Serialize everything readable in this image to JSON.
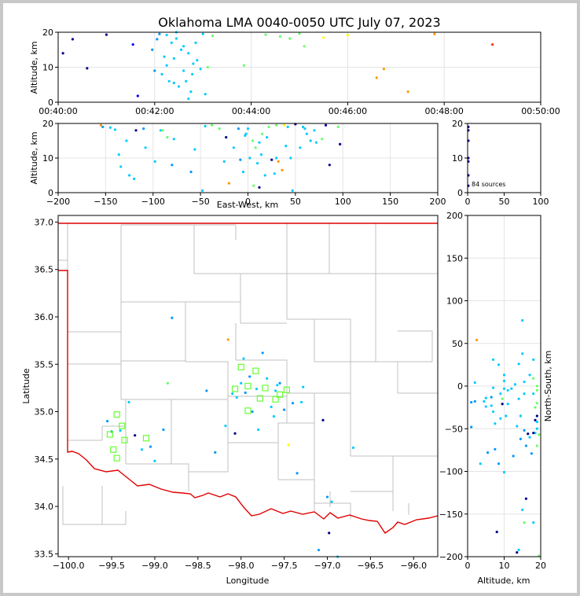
{
  "title": "Oklahoma LMA 0040-0050 UTC July 07, 2023",
  "colors": {
    "background": "#c8c8c8",
    "panel": "#ffffff",
    "state_border": "#e00000",
    "county_lines": "#c0c0c0",
    "station_marker": "#66ff33",
    "colormap": [
      "#00008b",
      "#0000ff",
      "#0099ff",
      "#00ccff",
      "#66ff66",
      "#ffff00",
      "#ff9900",
      "#ff3300"
    ]
  },
  "chart_data": [
    {
      "name": "time-altitude",
      "type": "scatter",
      "xlabel": "",
      "ylabel": "Altitude, km",
      "xticks": [
        "00:40:00",
        "00:42:00",
        "00:44:00",
        "00:46:00",
        "00:48:00",
        "00:50:00"
      ],
      "xlim_minutes": [
        40,
        50
      ],
      "yticks": [
        "0",
        "10",
        "20"
      ],
      "ylim": [
        0,
        20
      ],
      "grid": true,
      "points": [
        [
          40.1,
          14,
          0.02
        ],
        [
          40.3,
          18,
          0.05
        ],
        [
          40.6,
          9.7,
          0.05
        ],
        [
          41.0,
          19.3,
          0.05
        ],
        [
          41.55,
          16.5,
          0.1
        ],
        [
          41.65,
          1.8,
          0.2
        ],
        [
          41.95,
          15,
          0.3
        ],
        [
          42.0,
          9,
          0.35
        ],
        [
          42.05,
          18,
          0.35
        ],
        [
          42.1,
          19.5,
          0.35
        ],
        [
          42.15,
          8,
          0.38
        ],
        [
          42.2,
          13,
          0.38
        ],
        [
          42.25,
          19.2,
          0.4
        ],
        [
          42.3,
          6,
          0.4
        ],
        [
          42.35,
          17,
          0.4
        ],
        [
          42.4,
          5.5,
          0.4
        ],
        [
          42.4,
          12.5,
          0.4
        ],
        [
          42.45,
          18.2,
          0.42
        ],
        [
          42.5,
          4.5,
          0.42
        ],
        [
          42.55,
          15,
          0.42
        ],
        [
          42.6,
          9,
          0.42
        ],
        [
          42.6,
          16,
          0.45
        ],
        [
          42.65,
          6,
          0.45
        ],
        [
          42.7,
          14,
          0.45
        ],
        [
          42.75,
          3,
          0.45
        ],
        [
          42.78,
          8,
          0.45
        ],
        [
          42.8,
          11,
          0.45
        ],
        [
          42.85,
          17,
          0.45
        ],
        [
          42.88,
          12,
          0.48
        ],
        [
          42.95,
          9.5,
          0.48
        ],
        [
          43.0,
          19.5,
          0.48
        ],
        [
          43.05,
          2.3,
          0.48
        ],
        [
          43.1,
          10,
          0.5
        ],
        [
          43.2,
          19,
          0.5
        ],
        [
          42.25,
          10.5,
          0.4
        ],
        [
          42.45,
          20,
          0.4
        ],
        [
          42.7,
          1,
          0.45
        ],
        [
          43.85,
          10.5,
          0.55
        ],
        [
          44.3,
          19.3,
          0.6
        ],
        [
          44.6,
          18.8,
          0.62
        ],
        [
          44.8,
          18.2,
          0.63
        ],
        [
          45.0,
          19.6,
          0.62
        ],
        [
          45.1,
          16,
          0.62
        ],
        [
          45.5,
          18.5,
          0.68
        ],
        [
          46.0,
          19.2,
          0.7
        ],
        [
          46.6,
          7,
          0.8
        ],
        [
          46.75,
          9.5,
          0.82
        ],
        [
          47.25,
          3,
          0.85
        ],
        [
          47.8,
          19.5,
          0.9
        ],
        [
          49.0,
          16.5,
          0.95
        ]
      ]
    },
    {
      "name": "east-west-altitude",
      "type": "scatter",
      "xlabel": "East-West, km",
      "ylabel": "Altitude, km",
      "xticks": [
        "−200",
        "−150",
        "−100",
        "−50",
        "0",
        "50",
        "100",
        "150",
        "200"
      ],
      "xlim": [
        -200,
        200
      ],
      "yticks": [
        "0",
        "10",
        "20"
      ],
      "ylim": [
        0,
        20
      ],
      "grid": true,
      "points": [
        [
          -155,
          19.5,
          0.9
        ],
        [
          -153,
          19,
          0.3
        ],
        [
          -145,
          18.8,
          0.4
        ],
        [
          -140,
          18.2,
          0.45
        ],
        [
          -136,
          11,
          0.4
        ],
        [
          -134,
          7.5,
          0.45
        ],
        [
          -128,
          15,
          0.4
        ],
        [
          -125,
          5,
          0.4
        ],
        [
          -120,
          4,
          0.4
        ],
        [
          -118,
          18,
          0.02
        ],
        [
          -110,
          18.5,
          0.35
        ],
        [
          -108,
          13,
          0.4
        ],
        [
          -98,
          9,
          0.4
        ],
        [
          -92,
          18,
          0.45
        ],
        [
          -90,
          18,
          0.55
        ],
        [
          -80,
          8,
          0.3
        ],
        [
          -78,
          15.5,
          0.4
        ],
        [
          -60,
          6,
          0.3
        ],
        [
          -56,
          12.5,
          0.4
        ],
        [
          -48,
          0.6,
          0.4
        ],
        [
          -38,
          19.5,
          0.5
        ],
        [
          -30,
          18.5,
          0.62
        ],
        [
          -25,
          9,
          0.45
        ],
        [
          -23,
          16,
          0.02
        ],
        [
          -20,
          2.7,
          0.9
        ],
        [
          -15,
          13,
          0.45
        ],
        [
          -10,
          18.5,
          0.35
        ],
        [
          -8,
          9.5,
          0.35
        ],
        [
          -5,
          6,
          0.4
        ],
        [
          -2,
          17,
          0.4
        ],
        [
          0,
          18.5,
          0.45
        ],
        [
          2,
          10,
          0.45
        ],
        [
          5,
          15,
          0.5
        ],
        [
          6,
          2,
          0.5
        ],
        [
          8,
          13,
          0.5
        ],
        [
          10,
          8.5,
          0.45
        ],
        [
          12,
          14.5,
          0.45
        ],
        [
          14,
          11,
          0.45
        ],
        [
          15,
          17,
          0.5
        ],
        [
          18,
          5,
          0.45
        ],
        [
          22,
          19,
          0.5
        ],
        [
          25,
          9.5,
          0.02
        ],
        [
          28,
          5.5,
          0.4
        ],
        [
          30,
          10,
          0.42
        ],
        [
          32,
          9,
          0.8
        ],
        [
          36,
          6.5,
          0.85
        ],
        [
          38,
          19.5,
          0.7
        ],
        [
          40,
          13.5,
          0.42
        ],
        [
          42,
          19,
          0.4
        ],
        [
          45,
          10,
          0.45
        ],
        [
          47,
          0.6,
          0.45
        ],
        [
          50,
          19.8,
          0.05
        ],
        [
          55,
          13,
          0.45
        ],
        [
          60,
          18.5,
          0.42
        ],
        [
          62,
          17,
          0.45
        ],
        [
          66,
          15,
          0.48
        ],
        [
          70,
          18,
          0.48
        ],
        [
          72,
          14.5,
          0.42
        ],
        [
          78,
          15.5,
          0.6
        ],
        [
          82,
          19.5,
          0.02
        ],
        [
          86,
          8,
          0.02
        ],
        [
          95,
          19,
          0.55
        ],
        [
          97,
          14,
          0.02
        ],
        [
          -85,
          16,
          0.5
        ],
        [
          20,
          16,
          0.45
        ],
        [
          -45,
          19.2,
          0.42
        ],
        [
          58,
          19,
          0.42
        ],
        [
          30,
          19.5,
          0.55
        ],
        [
          -3,
          16.5,
          0.45
        ],
        [
          12,
          1.5,
          0.02
        ]
      ]
    },
    {
      "name": "altitude-histogram",
      "type": "scatter",
      "xticks": [
        "0",
        "50",
        "100"
      ],
      "xlim": [
        0,
        100
      ],
      "yticks": [
        "0",
        "10",
        "20"
      ],
      "ylim": [
        0,
        20
      ],
      "annotation": "84 sources",
      "points": [
        [
          1,
          19,
          0.02
        ],
        [
          1,
          18,
          0.02
        ],
        [
          1,
          15,
          0.02
        ],
        [
          1,
          9,
          0.02
        ],
        [
          1,
          10,
          0.02
        ],
        [
          1,
          5,
          0.02
        ],
        [
          1,
          2,
          0.02
        ]
      ]
    },
    {
      "name": "plan-view",
      "type": "scatter",
      "xlabel": "Longitude",
      "ylabel": "Latitude",
      "xticks": [
        "−100.0",
        "−99.5",
        "−99.0",
        "−98.5",
        "−98.0",
        "−97.5",
        "−97.0",
        "−96.5",
        "−96.0"
      ],
      "xlim": [
        -100.12,
        -95.72
      ],
      "yticks": [
        "33.5",
        "34.0",
        "34.5",
        "35.0",
        "35.5",
        "36.0",
        "36.5",
        "37.0"
      ],
      "ylim": [
        33.47,
        37.07
      ],
      "grid": false,
      "stations": [
        [
          -99.52,
          34.76
        ],
        [
          -99.48,
          34.6
        ],
        [
          -99.44,
          34.51
        ],
        [
          -99.44,
          34.97
        ],
        [
          -99.38,
          34.85
        ],
        [
          -99.35,
          34.7
        ],
        [
          -99.1,
          34.72
        ],
        [
          -98.07,
          35.24
        ],
        [
          -98.0,
          35.47
        ],
        [
          -97.92,
          35.27
        ],
        [
          -97.92,
          35.01
        ],
        [
          -97.83,
          35.43
        ],
        [
          -97.78,
          35.14
        ],
        [
          -97.72,
          35.25
        ],
        [
          -97.6,
          35.13
        ],
        [
          -97.55,
          35.18
        ],
        [
          -97.47,
          35.23
        ]
      ],
      "points": [
        [
          -99.55,
          34.9,
          0.3
        ],
        [
          -99.5,
          34.79,
          0.3
        ],
        [
          -99.4,
          34.8,
          0.4
        ],
        [
          -99.3,
          35.1,
          0.4
        ],
        [
          -99.23,
          34.75,
          0.02
        ],
        [
          -99.15,
          34.6,
          0.4
        ],
        [
          -99.05,
          34.63,
          0.35
        ],
        [
          -99.0,
          34.48,
          0.4
        ],
        [
          -98.9,
          34.81,
          0.3
        ],
        [
          -98.85,
          35.3,
          0.55
        ],
        [
          -98.8,
          35.99,
          0.3
        ],
        [
          -98.4,
          35.22,
          0.35
        ],
        [
          -98.3,
          34.57,
          0.35
        ],
        [
          -98.18,
          34.85,
          0.45
        ],
        [
          -98.15,
          35.76,
          0.85
        ],
        [
          -98.1,
          35.19,
          0.4
        ],
        [
          -98.07,
          34.77,
          0.02
        ],
        [
          -98.0,
          35.3,
          0.4
        ],
        [
          -97.95,
          35.2,
          0.35
        ],
        [
          -97.9,
          35.37,
          0.35
        ],
        [
          -97.87,
          35.0,
          0.35
        ],
        [
          -97.82,
          35.24,
          0.45
        ],
        [
          -97.8,
          34.81,
          0.4
        ],
        [
          -97.75,
          35.62,
          0.35
        ],
        [
          -97.7,
          35.35,
          0.4
        ],
        [
          -97.65,
          35.05,
          0.4
        ],
        [
          -97.62,
          34.95,
          0.4
        ],
        [
          -97.58,
          35.28,
          0.45
        ],
        [
          -97.55,
          35.3,
          0.3
        ],
        [
          -97.5,
          35.02,
          0.35
        ],
        [
          -97.45,
          34.65,
          0.7
        ],
        [
          -97.4,
          35.09,
          0.3
        ],
        [
          -97.35,
          34.35,
          0.35
        ],
        [
          -97.28,
          35.26,
          0.45
        ],
        [
          -97.1,
          33.54,
          0.35
        ],
        [
          -97.05,
          34.91,
          0.02
        ],
        [
          -97.0,
          34.1,
          0.3
        ],
        [
          -96.95,
          34.05,
          0.4
        ],
        [
          -96.88,
          33.47,
          0.4
        ],
        [
          -96.7,
          34.62,
          0.45
        ],
        [
          -97.3,
          35.1,
          0.4
        ],
        [
          -98.05,
          35.15,
          0.45
        ],
        [
          -97.97,
          35.56,
          0.4
        ],
        [
          -97.6,
          35.22,
          0.4
        ],
        [
          -96.98,
          33.72,
          0.02
        ]
      ]
    },
    {
      "name": "altitude-north-south",
      "type": "scatter",
      "xlabel": "Altitude, km",
      "ylabel": "North-South, km",
      "xticks": [
        "0",
        "10",
        "20"
      ],
      "xlim": [
        0,
        20
      ],
      "yticks": [
        "200",
        "150",
        "100",
        "50",
        "0",
        "−50",
        "−100",
        "−150",
        "−200"
      ],
      "ylim": [
        -200,
        200
      ],
      "grid": true,
      "points": [
        [
          1,
          -19,
          0.3
        ],
        [
          1,
          -48,
          0.3
        ],
        [
          2,
          4,
          0.4
        ],
        [
          2,
          -18,
          0.35
        ],
        [
          2.5,
          54,
          0.9
        ],
        [
          3.5,
          -91,
          0.4
        ],
        [
          4.5,
          -18,
          0.4
        ],
        [
          5,
          -14,
          0.4
        ],
        [
          5,
          -24,
          0.4
        ],
        [
          5.5,
          -78,
          0.3
        ],
        [
          6.5,
          -13,
          0.35
        ],
        [
          6.5,
          -23,
          0.4
        ],
        [
          7,
          31,
          0.45
        ],
        [
          7,
          -2,
          0.45
        ],
        [
          7,
          -30,
          0.45
        ],
        [
          7.5,
          -74,
          0.35
        ],
        [
          7.5,
          -44,
          0.4
        ],
        [
          8,
          -171,
          0.02
        ],
        [
          8.5,
          -91,
          0.35
        ],
        [
          8.5,
          25,
          0.45
        ],
        [
          9,
          -38,
          0.4
        ],
        [
          9,
          -9,
          0.45
        ],
        [
          9.5,
          -21,
          0.02
        ],
        [
          9.5,
          -15,
          0.5
        ],
        [
          10,
          -101,
          0.4
        ],
        [
          10,
          -3,
          0.45
        ],
        [
          10,
          6,
          0.45
        ],
        [
          10,
          13,
          0.45
        ],
        [
          10.5,
          -35,
          0.4
        ],
        [
          11,
          -21,
          0.45
        ],
        [
          11,
          -5,
          0.45
        ],
        [
          12,
          -3,
          0.45
        ],
        [
          12.5,
          -82,
          0.35
        ],
        [
          13,
          2,
          0.45
        ],
        [
          13.5,
          -47,
          0.4
        ],
        [
          13.5,
          -195,
          0.02
        ],
        [
          14,
          -192,
          0.4
        ],
        [
          14,
          26,
          0.45
        ],
        [
          14,
          -15,
          0.45
        ],
        [
          14.5,
          -35,
          0.45
        ],
        [
          14.5,
          -62,
          0.35
        ],
        [
          15,
          38,
          0.45
        ],
        [
          15,
          77,
          0.4
        ],
        [
          15.5,
          -52,
          0.3
        ],
        [
          15.5,
          -9,
          0.45
        ],
        [
          15.5,
          5,
          0.45
        ],
        [
          15.5,
          -160,
          0.58
        ],
        [
          16,
          -132,
          0.02
        ],
        [
          16,
          -70,
          0.35
        ],
        [
          16.5,
          -56,
          0.02
        ],
        [
          17,
          13,
          0.45
        ],
        [
          17,
          -60,
          0.4
        ],
        [
          17.5,
          -79,
          0.35
        ],
        [
          18,
          31,
          0.4
        ],
        [
          18,
          9,
          0.5
        ],
        [
          18,
          -9,
          0.45
        ],
        [
          18.5,
          -40,
          0.02
        ],
        [
          18.5,
          -55,
          0.4
        ],
        [
          19,
          -20,
          0.55
        ],
        [
          19,
          -42,
          0.45
        ],
        [
          19,
          -50,
          0.45
        ],
        [
          19,
          -70,
          0.55
        ],
        [
          19.5,
          -199,
          0.58
        ],
        [
          19.5,
          -57,
          0.5
        ],
        [
          19,
          -35,
          0.02
        ],
        [
          18.5,
          -25,
          0.55
        ],
        [
          19,
          -5,
          0.55
        ],
        [
          19,
          0,
          0.55
        ],
        [
          18,
          -160,
          0.4
        ],
        [
          18,
          -55,
          0.02
        ],
        [
          15,
          -145,
          0.4
        ]
      ]
    }
  ]
}
